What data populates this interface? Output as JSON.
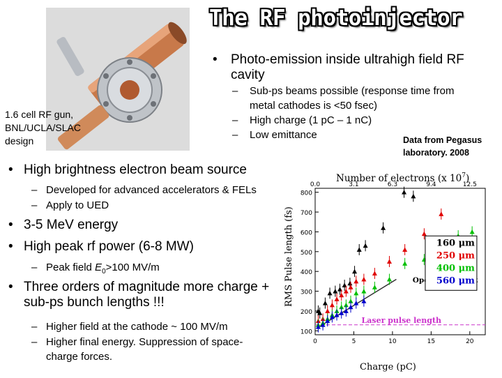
{
  "slide": {
    "title": "The RF photoinjector",
    "bullet_top": "Photo-emission inside ultrahigh field RF cavity",
    "sub_top": [
      "Sub-ps beams possible (response time from metal cathodes is <50 fsec)",
      "High charge (1 pC – 1 nC)",
      "Low emittance"
    ],
    "photo_caption": "1.6 cell RF gun, BNL/UCLA/SLAC design",
    "data_note": "Data from Pegasus laboratory. 2008",
    "bullets": [
      {
        "text": "High brightness electron beam source",
        "subs": [
          "Developed for advanced accelerators & FELs",
          "Apply to UED"
        ]
      },
      {
        "text": "3-5 MeV energy",
        "subs": []
      },
      {
        "text": "High peak rf power (6-8 MW)",
        "subs": [
          "Peak field E0>100 MV/m"
        ]
      },
      {
        "text": "Three orders of magnitude more charge + sub-ps bunch lengths !!!",
        "subs": [
          "Higher field at the cathode ~ 100 MV/m",
          "Higher final energy. Suppression of space-charge forces."
        ]
      }
    ],
    "bullet_char": "•",
    "dash_char": "–",
    "peak_field_parts": {
      "before": "Peak field ",
      "symbol": "E",
      "sub": "0",
      "after": ">100 MV/m"
    }
  },
  "chart_data": {
    "type": "scatter",
    "xlabel": "Charge (pC)",
    "ylabel": "RMS Pulse length (fs)",
    "top_axis_label": "Number of electrons (x 10",
    "top_axis_exp": "7",
    "top_axis_close": ")",
    "x_ticks": [
      0,
      5,
      10,
      15,
      20
    ],
    "y_ticks": [
      100,
      200,
      300,
      400,
      500,
      600,
      700,
      800
    ],
    "top_ticks": [
      "0.0",
      "3.1",
      "6.3",
      "9.4",
      "12.5"
    ],
    "xlim": [
      0,
      22
    ],
    "ylim": [
      80,
      820
    ],
    "annotations": [
      "Operating point",
      "Laser pulse length"
    ],
    "laser_pulse_length": 130,
    "colors": {
      "160": "#000000",
      "250": "#e00000",
      "400": "#00c000",
      "560": "#0000cc"
    },
    "series": [
      {
        "name": "160 μm",
        "points": [
          [
            0.4,
            200
          ],
          [
            0.6,
            190
          ],
          [
            1.3,
            240
          ],
          [
            1.9,
            290
          ],
          [
            2.6,
            300
          ],
          [
            3.2,
            310
          ],
          [
            3.8,
            330
          ],
          [
            4.5,
            340
          ],
          [
            5.1,
            400
          ],
          [
            5.7,
            510
          ],
          [
            6.5,
            530
          ],
          [
            8.8,
            620
          ],
          [
            11.5,
            800
          ],
          [
            12.7,
            780
          ]
        ]
      },
      {
        "name": "250 μm",
        "points": [
          [
            0.4,
            150
          ],
          [
            1.0,
            160
          ],
          [
            1.6,
            200
          ],
          [
            2.2,
            230
          ],
          [
            2.8,
            260
          ],
          [
            3.4,
            280
          ],
          [
            4.0,
            300
          ],
          [
            4.6,
            320
          ],
          [
            5.3,
            350
          ],
          [
            6.3,
            360
          ],
          [
            7.7,
            390
          ],
          [
            9.6,
            450
          ],
          [
            11.6,
            510
          ],
          [
            14.1,
            590
          ],
          [
            16.3,
            690
          ]
        ]
      },
      {
        "name": "400 μm",
        "points": [
          [
            0.4,
            130
          ],
          [
            1.0,
            140
          ],
          [
            1.6,
            160
          ],
          [
            2.2,
            180
          ],
          [
            2.8,
            200
          ],
          [
            3.4,
            220
          ],
          [
            4.0,
            230
          ],
          [
            4.6,
            250
          ],
          [
            5.3,
            290
          ],
          [
            6.3,
            300
          ],
          [
            7.7,
            320
          ],
          [
            9.6,
            360
          ],
          [
            11.6,
            440
          ],
          [
            14.1,
            460
          ],
          [
            16.3,
            480
          ],
          [
            18.5,
            580
          ],
          [
            20.3,
            600
          ]
        ]
      },
      {
        "name": "560 μm",
        "points": [
          [
            0.4,
            120
          ],
          [
            1.0,
            130
          ],
          [
            1.6,
            150
          ],
          [
            2.2,
            170
          ],
          [
            2.8,
            180
          ],
          [
            3.4,
            190
          ],
          [
            4.0,
            200
          ],
          [
            4.6,
            220
          ],
          [
            5.3,
            240
          ],
          [
            6.3,
            250
          ]
        ]
      }
    ],
    "operating_point": [
      [
        0.5,
        120
      ],
      [
        10.5,
        360
      ]
    ]
  }
}
